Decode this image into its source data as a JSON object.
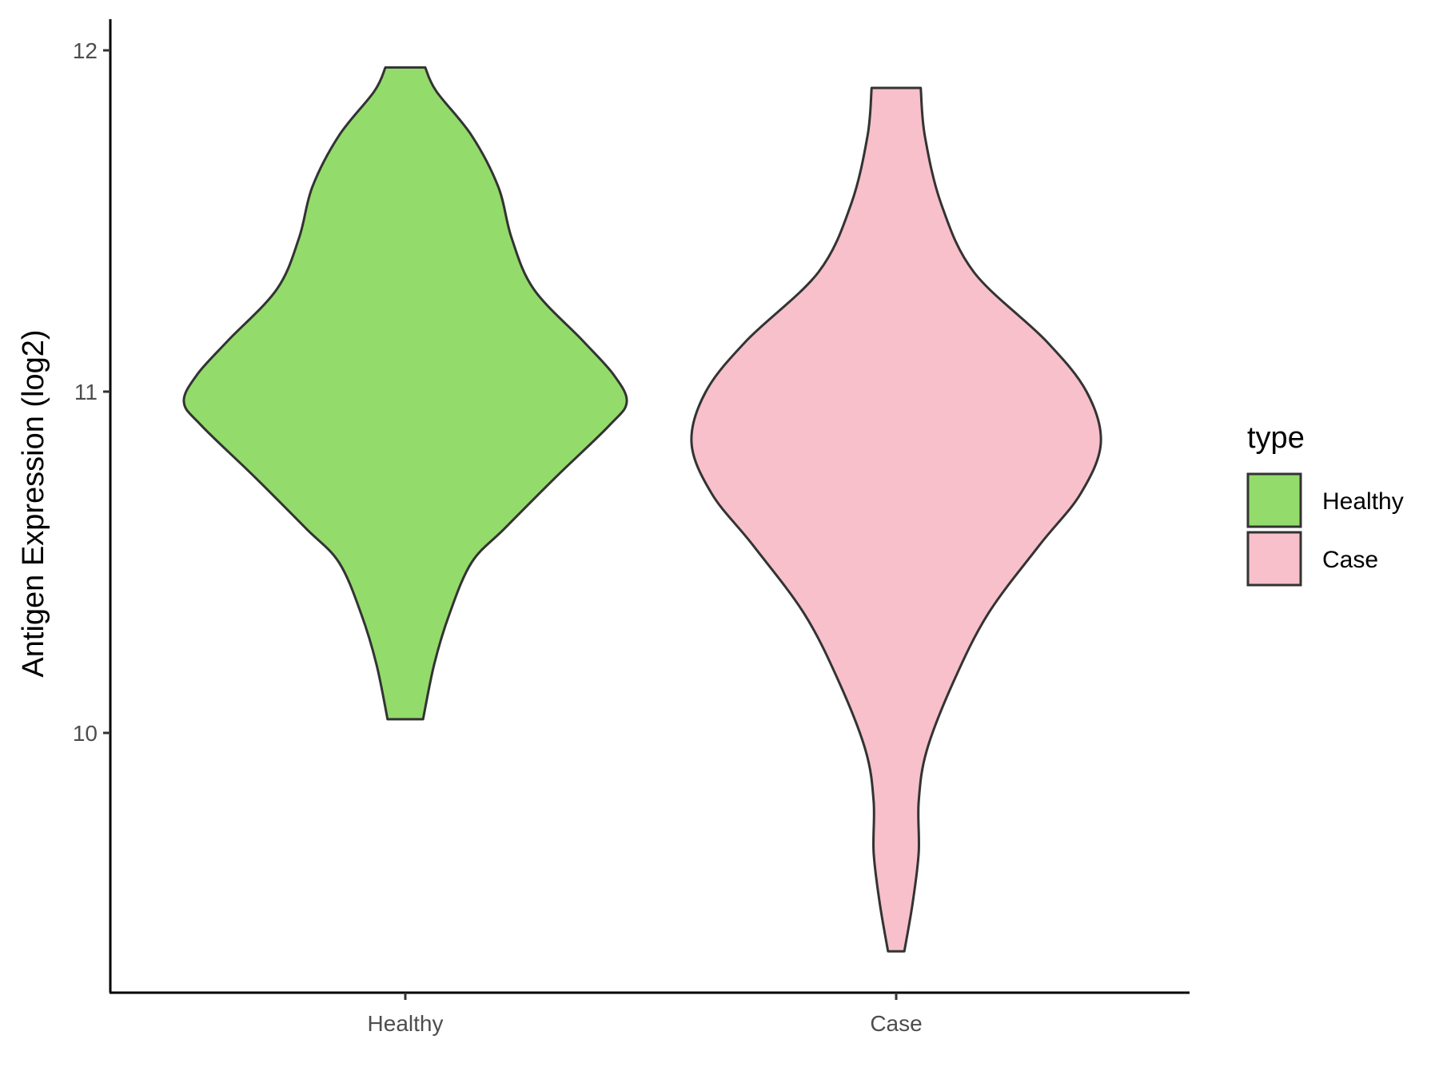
{
  "chart_data": {
    "type": "violin",
    "ylabel": "Antigen Expression (log2)",
    "xlabel": "",
    "ylim": [
      9.3,
      12.08
    ],
    "yticks": [
      "10",
      "11",
      "12"
    ],
    "categories": [
      "Healthy",
      "Case"
    ],
    "legend": {
      "title": "type",
      "position": "right"
    },
    "grid": false,
    "series": [
      {
        "name": "Healthy",
        "color": "#93dc6b",
        "range": [
          10.04,
          11.95
        ],
        "profile": [
          [
            10.04,
            0.08
          ],
          [
            10.2,
            0.13
          ],
          [
            10.35,
            0.2
          ],
          [
            10.5,
            0.3
          ],
          [
            10.6,
            0.45
          ],
          [
            10.75,
            0.68
          ],
          [
            10.9,
            0.92
          ],
          [
            10.97,
            1.0
          ],
          [
            11.05,
            0.94
          ],
          [
            11.15,
            0.8
          ],
          [
            11.3,
            0.58
          ],
          [
            11.45,
            0.48
          ],
          [
            11.6,
            0.42
          ],
          [
            11.75,
            0.3
          ],
          [
            11.88,
            0.14
          ],
          [
            11.95,
            0.09
          ]
        ]
      },
      {
        "name": "Case",
        "color": "#f7c0cb",
        "range": [
          9.36,
          11.89
        ],
        "profile": [
          [
            9.36,
            0.04
          ],
          [
            9.5,
            0.08
          ],
          [
            9.65,
            0.11
          ],
          [
            9.8,
            0.11
          ],
          [
            9.95,
            0.15
          ],
          [
            10.15,
            0.28
          ],
          [
            10.35,
            0.45
          ],
          [
            10.55,
            0.7
          ],
          [
            10.7,
            0.9
          ],
          [
            10.85,
            1.0
          ],
          [
            11.0,
            0.93
          ],
          [
            11.15,
            0.73
          ],
          [
            11.35,
            0.38
          ],
          [
            11.55,
            0.22
          ],
          [
            11.75,
            0.14
          ],
          [
            11.89,
            0.12
          ]
        ]
      }
    ]
  }
}
